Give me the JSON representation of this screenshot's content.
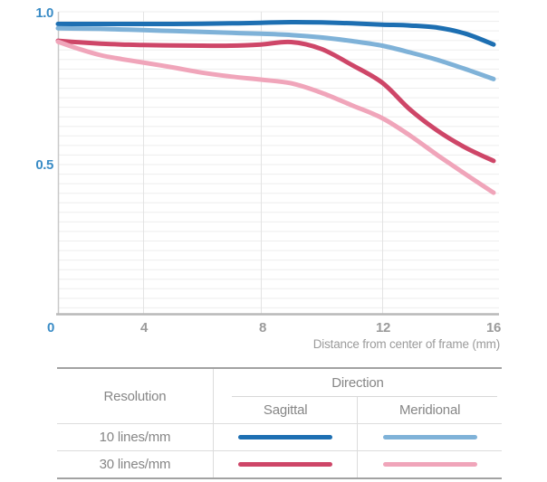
{
  "chart_data": {
    "type": "line",
    "title": "",
    "xlabel": "Distance from center of frame (mm)",
    "ylabel": "",
    "xlim": [
      0,
      16
    ],
    "ylim": [
      0,
      1.0
    ],
    "x_tick_values": [
      0,
      4,
      8,
      12,
      16
    ],
    "y_tick_values": [
      1.0,
      0.5
    ],
    "grid": "fine horizontal minor lines + vertical lines at major x ticks",
    "legend_position": "table below chart",
    "x": [
      0,
      1,
      2,
      3,
      4,
      5,
      6,
      7,
      8,
      9,
      10,
      11,
      12,
      13,
      14,
      15,
      16
    ],
    "series": [
      {
        "name": "10 lines/mm Sagittal",
        "resolution": "10 lines/mm",
        "direction": "Sagittal",
        "color": "#1d6fb2",
        "values": [
          0.96,
          0.96,
          0.96,
          0.96,
          0.96,
          0.96,
          0.961,
          0.962,
          0.964,
          0.966,
          0.965,
          0.962,
          0.958,
          0.955,
          0.948,
          0.928,
          0.893
        ]
      },
      {
        "name": "10 lines/mm Meridional",
        "resolution": "10 lines/mm",
        "direction": "Meridional",
        "color": "#7fb2d8",
        "values": [
          0.946,
          0.945,
          0.944,
          0.942,
          0.94,
          0.937,
          0.934,
          0.931,
          0.928,
          0.924,
          0.916,
          0.904,
          0.889,
          0.867,
          0.842,
          0.812,
          0.78
        ]
      },
      {
        "name": "30 lines/mm Sagittal",
        "resolution": "30 lines/mm",
        "direction": "Sagittal",
        "color": "#ce4668",
        "values": [
          0.905,
          0.9,
          0.896,
          0.893,
          0.891,
          0.89,
          0.889,
          0.889,
          0.893,
          0.901,
          0.878,
          0.826,
          0.768,
          0.68,
          0.61,
          0.555,
          0.512
        ]
      },
      {
        "name": "30 lines/mm Meridional",
        "resolution": "30 lines/mm",
        "direction": "Meridional",
        "color": "#f0a5ba",
        "values": [
          0.902,
          0.878,
          0.858,
          0.845,
          0.834,
          0.818,
          0.801,
          0.788,
          0.778,
          0.766,
          0.735,
          0.694,
          0.652,
          0.595,
          0.53,
          0.468,
          0.408
        ]
      }
    ]
  },
  "axis": {
    "y_tick_labels": [
      "1.0",
      "0.5"
    ],
    "x_tick_labels": [
      "0",
      "4",
      "8",
      "12",
      "16"
    ],
    "xlabel": "Distance from center of frame (mm)"
  },
  "legend_table": {
    "resolution_header": "Resolution",
    "direction_header": "Direction",
    "sagittal_header": "Sagittal",
    "meridional_header": "Meridional",
    "rows": [
      {
        "label": "10 lines/mm"
      },
      {
        "label": "30 lines/mm"
      }
    ]
  },
  "colors": {
    "tick_blue": "#3a8cc6",
    "tick_gray": "#9b9b9b",
    "grid_minor": "#ededed",
    "grid_major": "#e3e3e3",
    "y_axis_line": "#c9c9c9",
    "x_axis_line": "#b9b9b9",
    "series_blue": "#1d6fb2",
    "series_light_blue": "#7fb2d8",
    "series_crimson": "#ce4668",
    "series_pink": "#f0a5ba"
  }
}
